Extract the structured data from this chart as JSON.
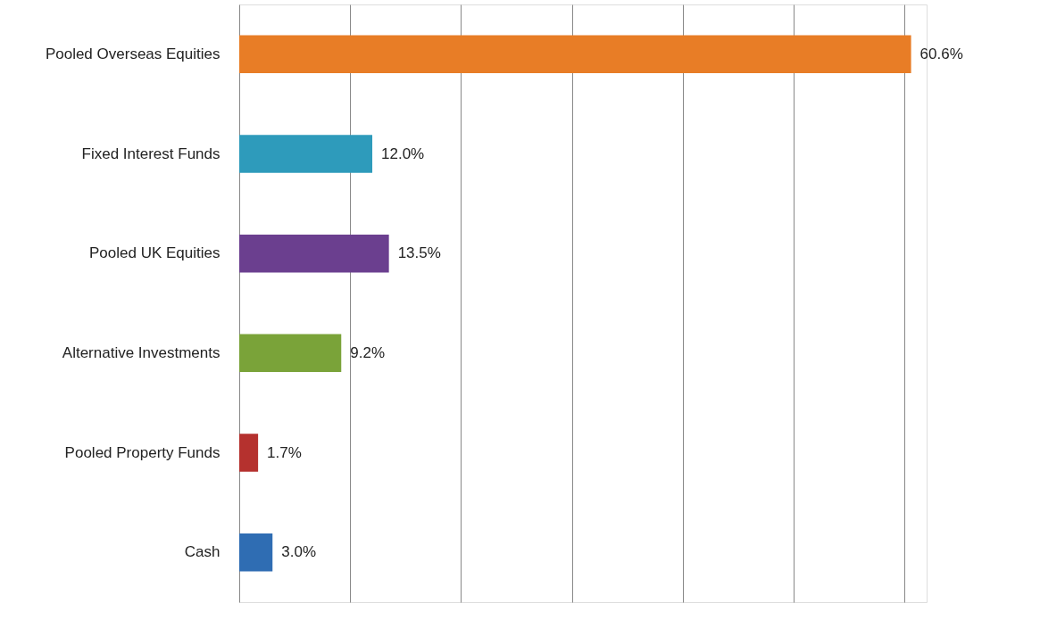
{
  "chart_data": {
    "type": "bar",
    "orientation": "horizontal",
    "categories": [
      "Pooled Overseas Equities",
      "Fixed Interest Funds",
      "Pooled UK Equities",
      "Alternative Investments",
      "Pooled Property Funds",
      "Cash"
    ],
    "values": [
      60.6,
      12.0,
      13.5,
      9.2,
      1.7,
      3.0
    ],
    "value_labels": [
      "60.6%",
      "12.0%",
      "13.5%",
      "9.2%",
      "1.7%",
      "3.0%"
    ],
    "colors": [
      "#e87d26",
      "#2e9bbb",
      "#6b3f8f",
      "#7aa339",
      "#b5312e",
      "#2f6db3"
    ],
    "xlim": [
      0,
      62
    ],
    "xticks": [
      {
        "value": 0,
        "label": null
      },
      {
        "value": 10,
        "label": null
      },
      {
        "value": 20,
        "label": null
      },
      {
        "value": 30,
        "label": null
      },
      {
        "value": 40,
        "label": null
      },
      {
        "value": 50,
        "label": null
      },
      {
        "value": 60,
        "label": null
      }
    ],
    "grid": "x",
    "tick_labels": "y"
  }
}
